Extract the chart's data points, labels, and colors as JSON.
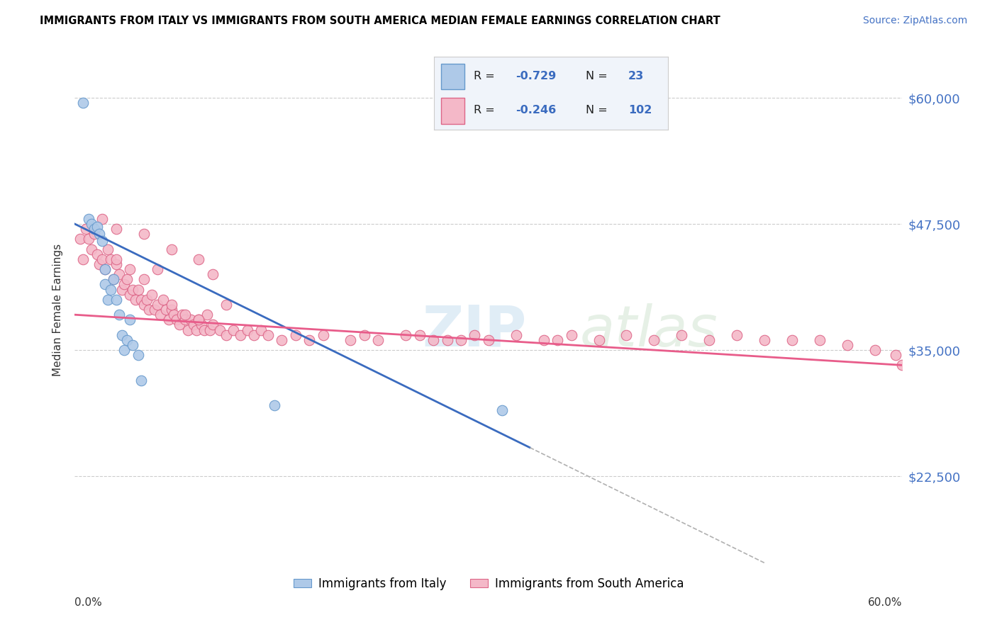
{
  "title": "IMMIGRANTS FROM ITALY VS IMMIGRANTS FROM SOUTH AMERICA MEDIAN FEMALE EARNINGS CORRELATION CHART",
  "source": "Source: ZipAtlas.com",
  "ylabel": "Median Female Earnings",
  "ytick_labels": [
    "$22,500",
    "$35,000",
    "$47,500",
    "$60,000"
  ],
  "ytick_values": [
    22500,
    35000,
    47500,
    60000
  ],
  "ymin": 13000,
  "ymax": 65000,
  "xmin": 0.0,
  "xmax": 0.6,
  "blue_color": "#aec9e8",
  "pink_color": "#f4b8c8",
  "blue_line_color": "#3a6bbf",
  "pink_line_color": "#e85c8a",
  "blue_edge_color": "#6699cc",
  "pink_edge_color": "#dd6688",
  "legend_box_color": "#f0f4fa",
  "legend_border_color": "#cccccc",
  "italy_x": [
    0.006,
    0.01,
    0.012,
    0.014,
    0.016,
    0.018,
    0.02,
    0.022,
    0.022,
    0.024,
    0.026,
    0.028,
    0.03,
    0.032,
    0.034,
    0.036,
    0.038,
    0.04,
    0.042,
    0.046,
    0.048,
    0.145,
    0.31
  ],
  "italy_y": [
    59500,
    48000,
    47500,
    47000,
    47200,
    46500,
    45800,
    43000,
    41500,
    40000,
    41000,
    42000,
    40000,
    38500,
    36500,
    35000,
    36000,
    38000,
    35500,
    34500,
    32000,
    29500,
    29000
  ],
  "sa_x": [
    0.004,
    0.006,
    0.008,
    0.01,
    0.012,
    0.014,
    0.016,
    0.018,
    0.02,
    0.022,
    0.024,
    0.026,
    0.028,
    0.03,
    0.032,
    0.034,
    0.036,
    0.038,
    0.04,
    0.042,
    0.044,
    0.046,
    0.048,
    0.05,
    0.052,
    0.054,
    0.056,
    0.058,
    0.06,
    0.062,
    0.064,
    0.066,
    0.068,
    0.07,
    0.072,
    0.074,
    0.076,
    0.078,
    0.08,
    0.082,
    0.084,
    0.086,
    0.088,
    0.09,
    0.092,
    0.094,
    0.096,
    0.098,
    0.1,
    0.105,
    0.11,
    0.115,
    0.12,
    0.125,
    0.13,
    0.135,
    0.14,
    0.15,
    0.16,
    0.17,
    0.18,
    0.2,
    0.21,
    0.22,
    0.24,
    0.26,
    0.28,
    0.3,
    0.32,
    0.34,
    0.36,
    0.25,
    0.27,
    0.29,
    0.35,
    0.38,
    0.4,
    0.42,
    0.44,
    0.46,
    0.48,
    0.5,
    0.52,
    0.54,
    0.56,
    0.58,
    0.595,
    0.02,
    0.03,
    0.04,
    0.05,
    0.06,
    0.07,
    0.08,
    0.09,
    0.1,
    0.11,
    0.03,
    0.05,
    0.07,
    0.09,
    0.6
  ],
  "sa_y": [
    46000,
    44000,
    47000,
    46000,
    45000,
    46500,
    44500,
    43500,
    44000,
    43000,
    45000,
    44000,
    42000,
    43500,
    42500,
    41000,
    41500,
    42000,
    40500,
    41000,
    40000,
    41000,
    40000,
    39500,
    40000,
    39000,
    40500,
    39000,
    39500,
    38500,
    40000,
    39000,
    38000,
    39000,
    38500,
    38000,
    37500,
    38500,
    38000,
    37000,
    38000,
    37500,
    37000,
    38000,
    37500,
    37000,
    38500,
    37000,
    37500,
    37000,
    36500,
    37000,
    36500,
    37000,
    36500,
    37000,
    36500,
    36000,
    36500,
    36000,
    36500,
    36000,
    36500,
    36000,
    36500,
    36000,
    36000,
    36000,
    36500,
    36000,
    36500,
    36500,
    36000,
    36500,
    36000,
    36000,
    36500,
    36000,
    36500,
    36000,
    36500,
    36000,
    36000,
    36000,
    35500,
    35000,
    34500,
    48000,
    44000,
    43000,
    42000,
    43000,
    39500,
    38500,
    38000,
    42500,
    39500,
    47000,
    46500,
    45000,
    44000,
    33500
  ]
}
